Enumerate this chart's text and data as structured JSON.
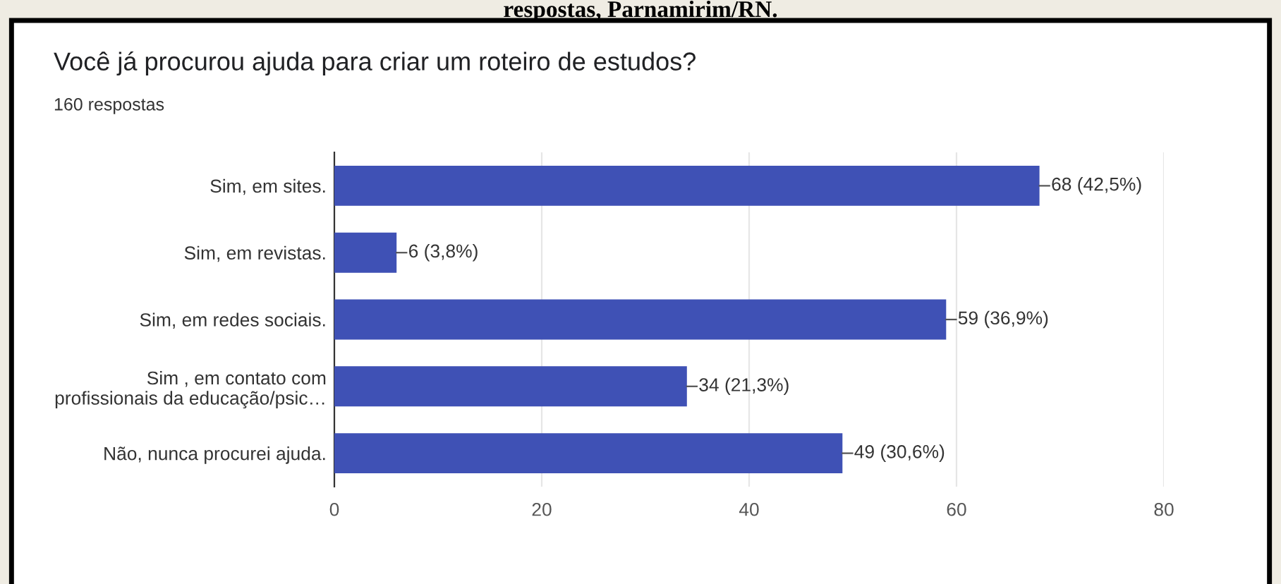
{
  "chart_data": {
    "type": "bar",
    "orientation": "horizontal",
    "title": "Você já procurou ajuda para criar um roteiro de estudos?",
    "subtitle": "160 respostas",
    "annotations": [
      "respostas, Parnamirim/RN."
    ],
    "categories": [
      "Sim, em sites.",
      "Sim, em revistas.",
      "Sim, em redes sociais.",
      "Sim , em contato com\nprofissionais da educação/psic…",
      "Não, nunca procurei ajuda."
    ],
    "values": [
      68,
      6,
      59,
      34,
      49
    ],
    "value_labels": [
      "68 (42,5%)",
      "6 (3,8%)",
      "59 (36,9%)",
      "34 (21,3%)",
      "49 (30,6%)"
    ],
    "color": "#3f51b5",
    "xlim": [
      0,
      80
    ],
    "xticks": [
      0,
      20,
      40,
      60,
      80
    ],
    "grid": "x",
    "legend": false
  }
}
